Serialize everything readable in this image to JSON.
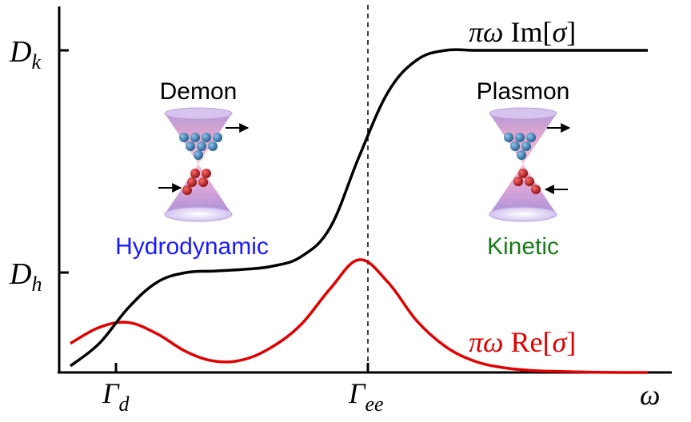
{
  "chart_data": {
    "type": "line",
    "title": "",
    "xlabel": "ω",
    "ylabel": "",
    "x_ticks": [
      {
        "key": "gamma_d",
        "base": "Γ",
        "sub": "d"
      },
      {
        "key": "gamma_ee",
        "base": "Γ",
        "sub": "ee"
      }
    ],
    "y_ticks": [
      {
        "key": "d_k",
        "base": "D",
        "sub": "k"
      },
      {
        "key": "d_h",
        "base": "D",
        "sub": "h"
      }
    ],
    "x_range": [
      0,
      10
    ],
    "y_range": [
      0,
      1.08
    ],
    "reference_lines": [
      {
        "orientation": "vertical",
        "at": "Γee",
        "style": "dashed",
        "color": "#000000"
      }
    ],
    "series": [
      {
        "name": "πω Im[σ]",
        "color": "#000000",
        "x": [
          0,
          0.5,
          1,
          1.5,
          2,
          2.5,
          3,
          3.5,
          4,
          4.5,
          5,
          5.5,
          6,
          6.5,
          7,
          7.5,
          8,
          8.5,
          9,
          9.5,
          10
        ],
        "y": [
          0.02,
          0.09,
          0.2,
          0.28,
          0.31,
          0.315,
          0.32,
          0.33,
          0.36,
          0.45,
          0.67,
          0.87,
          0.97,
          1.0,
          1.0,
          1.0,
          1.0,
          1.0,
          1.0,
          1.0,
          1.0
        ]
      },
      {
        "name": "πω Re[σ]",
        "color": "#e00000",
        "x": [
          0,
          0.5,
          1,
          1.5,
          2,
          2.5,
          3,
          3.5,
          4,
          4.5,
          5,
          5.5,
          6,
          6.5,
          7,
          7.5,
          8,
          8.5,
          9,
          9.5,
          10
        ],
        "y": [
          0.09,
          0.14,
          0.155,
          0.12,
          0.065,
          0.035,
          0.04,
          0.08,
          0.15,
          0.26,
          0.35,
          0.28,
          0.16,
          0.08,
          0.035,
          0.015,
          0.006,
          0.003,
          0.001,
          0.0,
          0.0
        ]
      }
    ],
    "curve_labels": {
      "im": {
        "prefix": "πω",
        "func": "Im",
        "lb": "[",
        "var": "σ",
        "rb": "]"
      },
      "re": {
        "prefix": "πω",
        "func": "Re",
        "lb": "[",
        "var": "σ",
        "rb": "]"
      }
    },
    "annotations": {
      "demon": "Demon",
      "plasmon": "Plasmon",
      "hydrodynamic": "Hydrodynamic",
      "kinetic": "Kinetic"
    },
    "colors": {
      "hydrodynamic": "#1a1aff",
      "kinetic": "#1a7a1a",
      "re_curve": "#e00000",
      "im_curve": "#000000",
      "electron": "#3a78b0",
      "hole": "#c81e1e",
      "cone_top": "#b79ad6",
      "cone_mid": "#f0a8c8"
    }
  }
}
